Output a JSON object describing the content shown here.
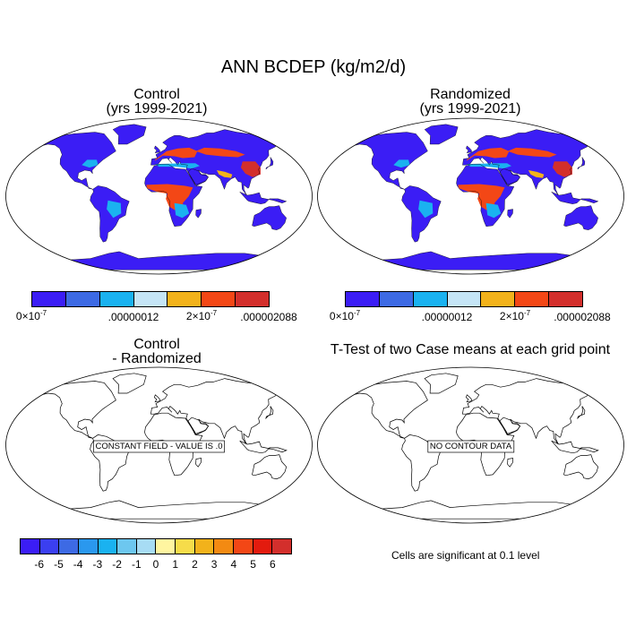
{
  "title": "ANN BCDEP (kg/m2/d)",
  "panels": {
    "control": {
      "line1": "Control",
      "line2": "(yrs 1999-2021)"
    },
    "randomized": {
      "line1": "Randomized",
      "line2": "(yrs 1999-2021)"
    },
    "diff": {
      "line1": "Control",
      "line2": "- Randomized",
      "message": "CONSTANT FIELD - VALUE IS .0"
    },
    "ttest": {
      "line1": "T-Test of two Case means at each grid point",
      "message": "NO CONTOUR DATA"
    }
  },
  "colorbar_top": {
    "colors": [
      "#3b1df5",
      "#3d6ae4",
      "#1ab2f0",
      "#c5e5f6",
      "#f2b21b",
      "#f34716",
      "#d32f2c"
    ],
    "labels": {
      "l0": "0×10",
      "l0_exp": "-7",
      "l1": ".00000012",
      "l2": "2×10",
      "l2_exp": "-7",
      "l3": ".000002088"
    }
  },
  "colorbar_bottom": {
    "colors": [
      "#3b1df5",
      "#3b3ff0",
      "#3d6ae4",
      "#2a98ee",
      "#1ab2f0",
      "#6dc7ef",
      "#a7dcf4",
      "#fff5a0",
      "#f6dc4a",
      "#f2b21b",
      "#f38a12",
      "#f34716",
      "#e31b0e",
      "#d32f2c"
    ],
    "ticks": [
      "-6",
      "-5",
      "-4",
      "-3",
      "-2",
      "-1",
      "0",
      "1",
      "2",
      "3",
      "4",
      "5",
      "6"
    ]
  },
  "significance_note": "Cells are significant at 0.1 level",
  "map_colors": {
    "ocean": "#ffffff",
    "low": "#3b1df5",
    "mid": "#1ab2f0",
    "high": "#f34716",
    "max": "#d32f2c",
    "yellow": "#f2b21b",
    "outline": "#000000"
  }
}
